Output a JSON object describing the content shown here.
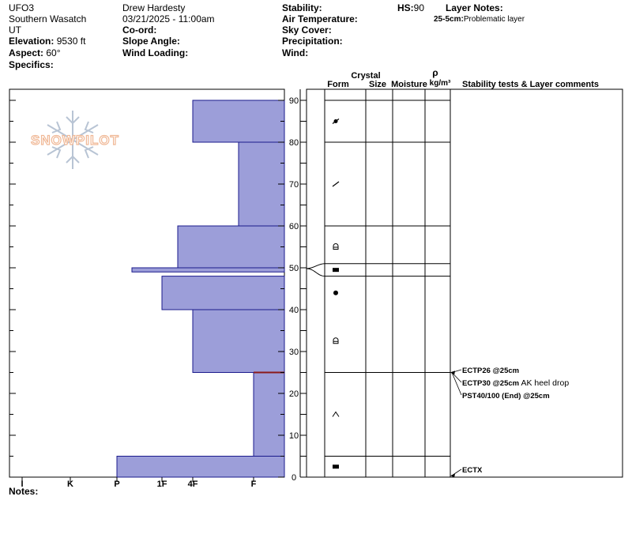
{
  "header": {
    "site": "UFO3",
    "range": "Southern Wasatch",
    "state": "UT",
    "elevation_label": "Elevation:",
    "elevation_value": "9530 ft",
    "aspect_label": "Aspect:",
    "aspect_value": "60°",
    "specifics_label": "Specifics:",
    "observer": "Drew Hardesty",
    "datetime": "03/21/2025 - 11:00am",
    "coord_label": "Co-ord:",
    "slope_label": "Slope Angle:",
    "wind_loading_label": "Wind Loading:",
    "stability_label": "Stability:",
    "air_temp_label": "Air Temperature:",
    "sky_cover_label": "Sky Cover:",
    "precip_label": "Precipitation:",
    "wind_label": "Wind:",
    "hs_label": "HS:",
    "hs_value": "90",
    "layer_notes_label": "Layer Notes:",
    "layer_note_range": "25-5cm:",
    "layer_note_text": "Problematic layer"
  },
  "logo": {
    "text": "SNOWPILOT"
  },
  "notes_label": "Notes:",
  "columns": {
    "crystal": "Crystal",
    "form": "Form",
    "size": "Size",
    "moisture": "Moisture",
    "rho": "ρ",
    "density_unit": "kg/m³",
    "stability": "Stability tests & Layer comments"
  },
  "chart_data": {
    "type": "snow_profile",
    "height_axis": {
      "min": 0,
      "max": 90,
      "ticks": [
        0,
        10,
        20,
        30,
        40,
        50,
        60,
        70,
        80,
        90
      ]
    },
    "hardness_axis": {
      "categories": [
        "I",
        "K",
        "P",
        "1F",
        "4F",
        "F"
      ]
    },
    "hardness_layers": [
      {
        "bottom": 0,
        "top": 5,
        "hardness": "P"
      },
      {
        "bottom": 5,
        "top": 25,
        "hardness": "F"
      },
      {
        "bottom": 25,
        "top": 40,
        "hardness": "4F"
      },
      {
        "bottom": 40,
        "top": 48,
        "hardness": "1F"
      },
      {
        "bottom": 48,
        "top": 49,
        "hardness": "P"
      },
      {
        "bottom": 49,
        "top": 50,
        "hardness": "P"
      },
      {
        "bottom": 50,
        "top": 60,
        "hardness": "1F+"
      },
      {
        "bottom": 60,
        "top": 80,
        "hardness": "F+"
      },
      {
        "bottom": 80,
        "top": 90,
        "hardness": "4F"
      }
    ],
    "highlight_line_height": 25,
    "layer_boundaries": [
      0,
      5,
      25,
      48,
      51,
      60,
      80,
      90
    ],
    "grain_forms": [
      {
        "height": 85,
        "symbol": "mixed-forms"
      },
      {
        "height": 70,
        "symbol": "decomposing-fragments"
      },
      {
        "height": 55,
        "symbol": "rounded-faceted"
      },
      {
        "height": 49.5,
        "symbol": "melt-freeze-crust"
      },
      {
        "height": 44,
        "symbol": "rounded-grains"
      },
      {
        "height": 32.5,
        "symbol": "rounded-faceted"
      },
      {
        "height": 15,
        "symbol": "depth-hoar"
      },
      {
        "height": 2.5,
        "symbol": "melt-freeze-crust"
      }
    ],
    "stability_tests": [
      {
        "height": 25,
        "label": "ECTP26 @25cm",
        "comment": ""
      },
      {
        "height": 25,
        "label": "ECTP30 @25cm",
        "comment": "AK heel drop"
      },
      {
        "height": 25,
        "label": "PST40/100 (End) @25cm",
        "comment": ""
      },
      {
        "height": 0,
        "label": "ECTX",
        "comment": ""
      }
    ],
    "colors": {
      "layer_fill": "#9c9ed9",
      "layer_stroke": "#1a1a8c",
      "highlight": "#8b1a1a",
      "logo": "#f0c8a8"
    }
  }
}
